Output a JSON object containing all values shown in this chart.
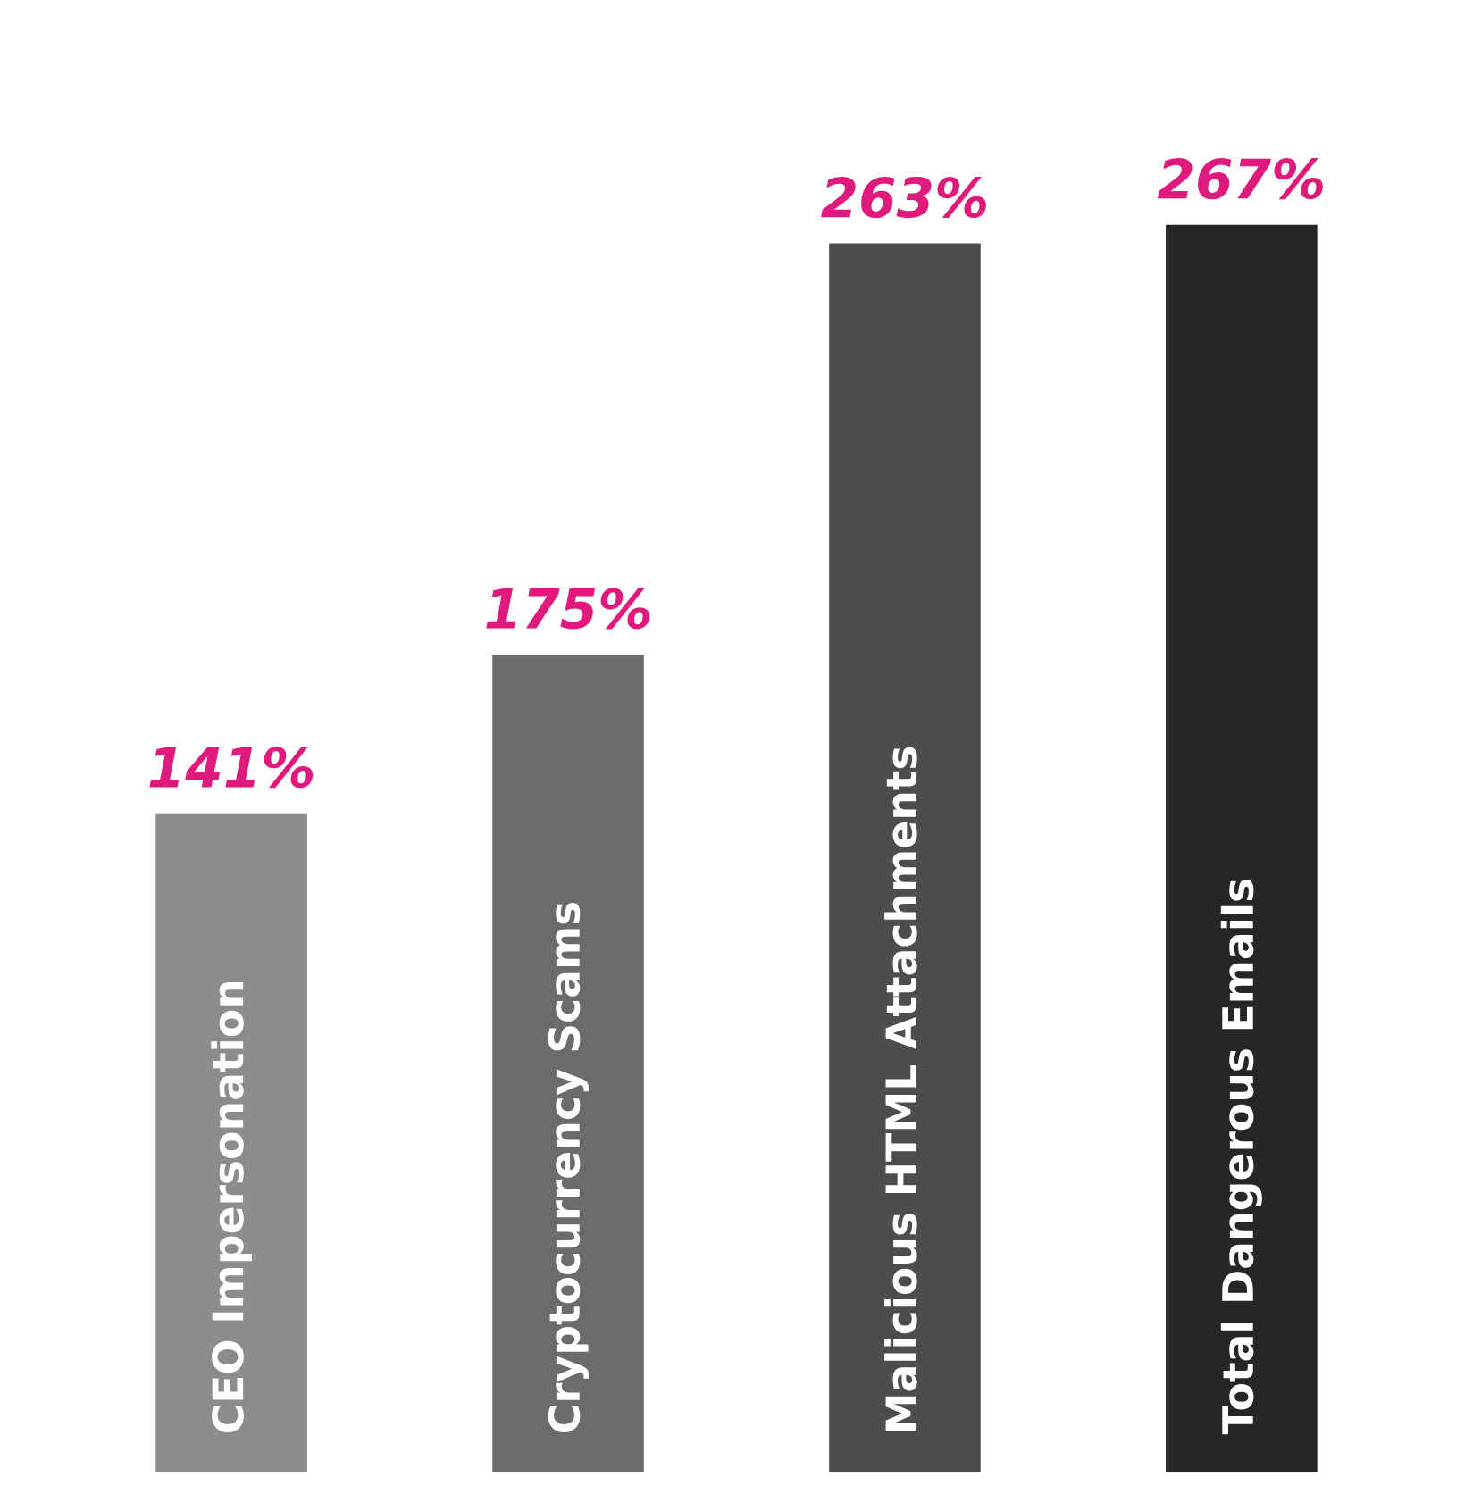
{
  "chart_data": {
    "type": "bar",
    "categories": [
      "CEO Impersonation",
      "Cryptocurrency Scams",
      "Malicious HTML Attachments",
      "Total Dangerous Emails"
    ],
    "values": [
      141,
      175,
      263,
      267
    ],
    "value_labels": [
      "141%",
      "175%",
      "263%",
      "267%"
    ],
    "colors": [
      "#8c8c8c",
      "#6b6b6b",
      "#4d4d4d",
      "#262626"
    ]
  }
}
